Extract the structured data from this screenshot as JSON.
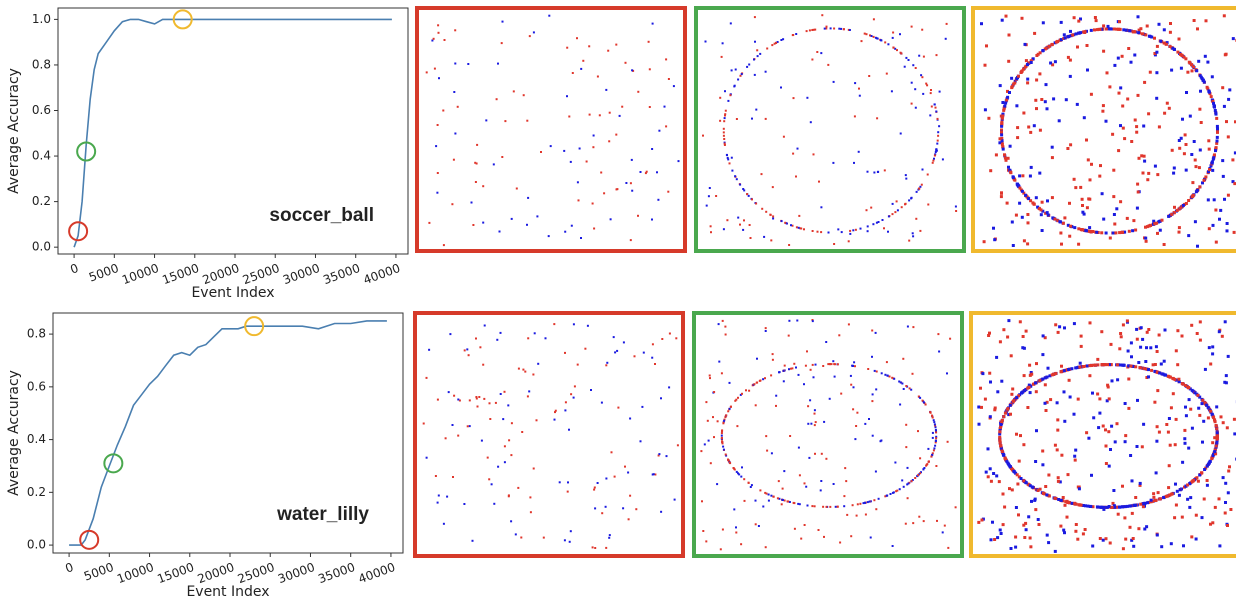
{
  "chart_data": [
    {
      "type": "line",
      "annotation": "soccer_ball",
      "xlabel": "Event Index",
      "ylabel": "Average Accuracy",
      "x": [
        0,
        500,
        1000,
        1500,
        2000,
        2500,
        3000,
        4000,
        5000,
        6000,
        7000,
        8000,
        9000,
        10000,
        11000,
        12000,
        14000,
        20000,
        30000,
        39500
      ],
      "series": [
        {
          "color": "#4a7fb0",
          "values": [
            0,
            0.05,
            0.2,
            0.45,
            0.65,
            0.78,
            0.85,
            0.9,
            0.95,
            0.99,
            1.0,
            1.0,
            0.99,
            0.98,
            1.0,
            1.0,
            1.0,
            1.0,
            1.0,
            1.0
          ]
        }
      ],
      "xlim": [
        -2000,
        41500
      ],
      "ylim": [
        -0.03,
        1.05
      ],
      "xticks": [
        0,
        5000,
        10000,
        15000,
        20000,
        25000,
        30000,
        35000,
        40000
      ],
      "yticks": [
        {
          "value": 0,
          "label": "0.0"
        },
        0.2,
        0.4,
        0.6,
        0.8,
        {
          "value": 1,
          "label": "1.0"
        }
      ],
      "markers": [
        {
          "x": 500,
          "y": 0.07,
          "color": "#d63a2a"
        },
        {
          "x": 1500,
          "y": 0.42,
          "color": "#4aa84e"
        },
        {
          "x": 13500,
          "y": 1.0,
          "color": "#f0b92e"
        }
      ]
    },
    {
      "type": "line",
      "annotation": "water_lilly",
      "xlabel": "Event Index",
      "ylabel": "Average Accuracy",
      "x": [
        0,
        1500,
        2000,
        3000,
        4000,
        5000,
        6000,
        7000,
        8000,
        9000,
        10000,
        11000,
        12000,
        13000,
        14000,
        15000,
        16000,
        17000,
        18000,
        19000,
        20000,
        21000,
        22000,
        23000,
        25000,
        27000,
        29000,
        31000,
        33000,
        35000,
        37000,
        39500
      ],
      "series": [
        {
          "color": "#4a7fb0",
          "values": [
            0,
            0,
            0.02,
            0.1,
            0.22,
            0.3,
            0.38,
            0.45,
            0.53,
            0.57,
            0.61,
            0.64,
            0.68,
            0.72,
            0.73,
            0.72,
            0.75,
            0.76,
            0.79,
            0.82,
            0.82,
            0.82,
            0.83,
            0.83,
            0.83,
            0.83,
            0.83,
            0.82,
            0.84,
            0.84,
            0.85,
            0.85
          ]
        }
      ],
      "xlim": [
        -2000,
        41500
      ],
      "ylim": [
        -0.03,
        0.88
      ],
      "xticks": [
        0,
        5000,
        10000,
        15000,
        20000,
        25000,
        30000,
        35000,
        40000
      ],
      "yticks": [
        {
          "value": 0,
          "label": "0.0"
        },
        0.2,
        0.4,
        0.6,
        0.8
      ],
      "markers": [
        {
          "x": 2500,
          "y": 0.02,
          "color": "#d63a2a"
        },
        {
          "x": 5500,
          "y": 0.31,
          "color": "#4aa84e"
        },
        {
          "x": 23000,
          "y": 0.83,
          "color": "#f0b92e"
        }
      ]
    }
  ]
}
